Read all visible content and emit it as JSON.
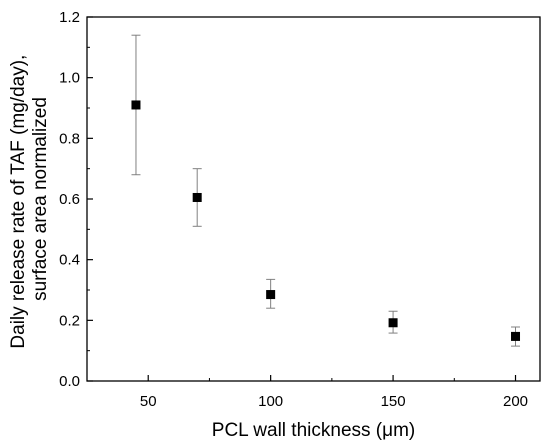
{
  "chart_data": {
    "type": "scatter",
    "title": "",
    "xlabel": "PCL wall thickness (μm)",
    "ylabel_lines": [
      "Daily release rate of TAF (mg/day),",
      "surface area normalized"
    ],
    "xlim": [
      25,
      210
    ],
    "ylim": [
      0.0,
      1.2
    ],
    "xticks": [
      50,
      100,
      150,
      200
    ],
    "yticks": [
      0.0,
      0.2,
      0.4,
      0.6,
      0.8,
      1.0,
      1.2
    ],
    "ytick_labels": [
      "0.0",
      "0.2",
      "0.4",
      "0.6",
      "0.8",
      "1.0",
      "1.2"
    ],
    "grid": false,
    "marker": "square",
    "marker_color": "#000000",
    "errorbar_color": "#808080",
    "points": [
      {
        "x": 45,
        "y": 0.91,
        "err_low": 0.68,
        "err_high": 1.14
      },
      {
        "x": 70,
        "y": 0.605,
        "err_low": 0.51,
        "err_high": 0.7
      },
      {
        "x": 100,
        "y": 0.285,
        "err_low": 0.24,
        "err_high": 0.335
      },
      {
        "x": 150,
        "y": 0.192,
        "err_low": 0.158,
        "err_high": 0.23
      },
      {
        "x": 200,
        "y": 0.147,
        "err_low": 0.115,
        "err_high": 0.178
      }
    ]
  }
}
